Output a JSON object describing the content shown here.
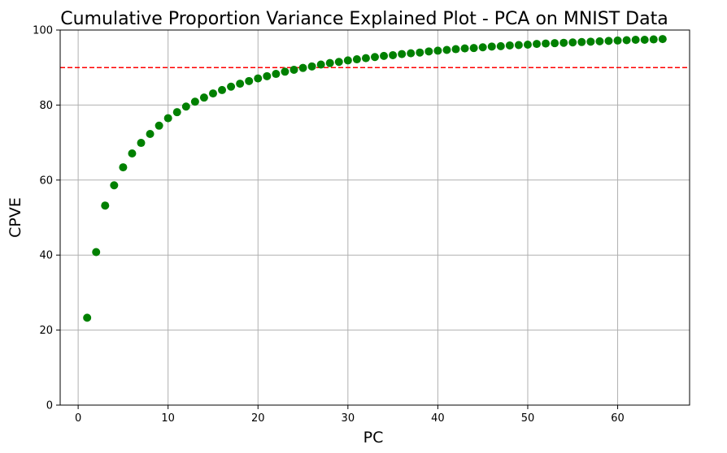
{
  "chart_data": {
    "type": "scatter",
    "title": "Cumulative Proportion Variance Explained Plot - PCA on MNIST Data",
    "xlabel": "PC",
    "ylabel": "CPVE",
    "xlim": [
      -2,
      68
    ],
    "ylim": [
      0,
      100
    ],
    "xticks": [
      0,
      10,
      20,
      30,
      40,
      50,
      60
    ],
    "yticks": [
      0,
      20,
      40,
      60,
      80,
      100
    ],
    "grid": true,
    "point_color": "#008000",
    "reference_line": {
      "y": 90,
      "color": "#ff0000",
      "style": "dashed"
    },
    "series": [
      {
        "x": [
          1,
          2,
          3,
          4,
          5,
          6,
          7,
          8,
          9,
          10,
          11,
          12,
          13,
          14,
          15,
          16,
          17,
          18,
          19,
          20,
          21,
          22,
          23,
          24,
          25,
          26,
          27,
          28,
          29,
          30,
          31,
          32,
          33,
          34,
          35,
          36,
          37,
          38,
          39,
          40,
          41,
          42,
          43,
          44,
          45,
          46,
          47,
          48,
          49,
          50,
          51,
          52,
          53,
          54,
          55,
          56,
          57,
          58,
          59,
          60,
          61,
          62,
          63,
          64,
          65
        ],
        "values": [
          23.3,
          40.8,
          53.2,
          58.6,
          63.4,
          67.1,
          69.9,
          72.3,
          74.5,
          76.5,
          78.1,
          79.6,
          80.9,
          82.0,
          83.1,
          84.0,
          84.9,
          85.7,
          86.4,
          87.1,
          87.7,
          88.3,
          88.9,
          89.4,
          89.9,
          90.3,
          90.8,
          91.2,
          91.5,
          91.9,
          92.2,
          92.5,
          92.8,
          93.1,
          93.3,
          93.6,
          93.8,
          94.0,
          94.3,
          94.5,
          94.7,
          94.9,
          95.1,
          95.2,
          95.4,
          95.6,
          95.7,
          95.9,
          96.0,
          96.1,
          96.3,
          96.4,
          96.5,
          96.6,
          96.7,
          96.8,
          96.9,
          97.0,
          97.1,
          97.2,
          97.3,
          97.4,
          97.4,
          97.5,
          97.6
        ]
      }
    ]
  }
}
